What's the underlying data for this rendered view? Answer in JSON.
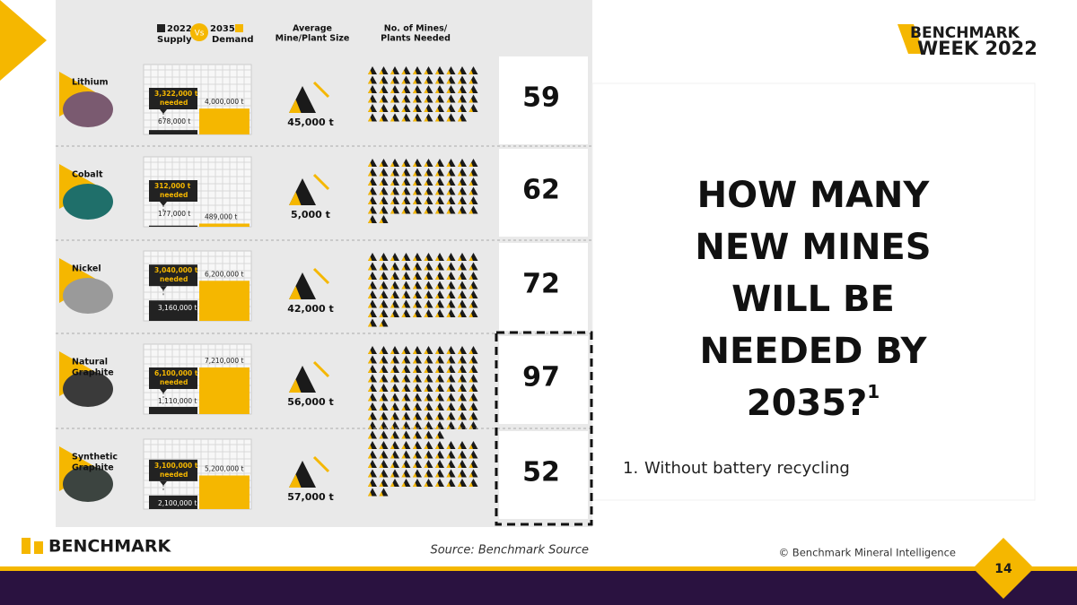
{
  "legend": {
    "supply_year": "2022",
    "vs": "Vs",
    "demand_year": "2035",
    "supply": "Supply",
    "demand": "Demand"
  },
  "columns": {
    "size": [
      "Average",
      "Mine/Plant Size"
    ],
    "mines": [
      "No. of Mines/",
      "Plants Needed"
    ]
  },
  "needed_word": "needed",
  "rows": [
    {
      "name": [
        "Lithium"
      ],
      "needed": "3,322,000 t",
      "supply": 678000,
      "supply_label": "678,000 t",
      "demand": 4000000,
      "demand_label": "4,000,000 t",
      "size": "45,000 t",
      "count": 59
    },
    {
      "name": [
        "Cobalt"
      ],
      "needed": "312,000 t",
      "supply": 177000,
      "supply_label": "177,000 t",
      "demand": 489000,
      "demand_label": "489,000 t",
      "size": "5,000 t",
      "count": 62
    },
    {
      "name": [
        "Nickel"
      ],
      "needed": "3,040,000 t",
      "supply": 3160000,
      "supply_label": "3,160,000 t",
      "demand": 6200000,
      "demand_label": "6,200,000 t",
      "size": "42,000 t",
      "count": 72
    },
    {
      "name": [
        "Natural",
        "Graphite"
      ],
      "needed": "6,100,000 t",
      "supply": 1110000,
      "supply_label": "1,110,000 t",
      "demand": 7210000,
      "demand_label": "7,210,000 t",
      "size": "56,000 t",
      "count": 97
    },
    {
      "name": [
        "Synthetic",
        "Graphite"
      ],
      "needed": "3,100,000 t",
      "supply": 2100000,
      "supply_label": "2,100,000 t",
      "demand": 5200000,
      "demand_label": "5,200,000 t",
      "size": "57,000 t",
      "count": 52
    }
  ],
  "heading": [
    "HOW MANY",
    "NEW MINES",
    "WILL BE",
    "NEEDED BY",
    "2035?"
  ],
  "heading_mark": "1",
  "footnote": {
    "number": "1.",
    "text": "Without battery recycling"
  },
  "brand": {
    "event_top": "BENCHMARK",
    "event_bottom": "WEEK 2022",
    "logo": "BENCHMARK"
  },
  "source": "Source: Benchmark Source",
  "copyright": "© Benchmark Mineral Intelligence",
  "page": "14"
}
